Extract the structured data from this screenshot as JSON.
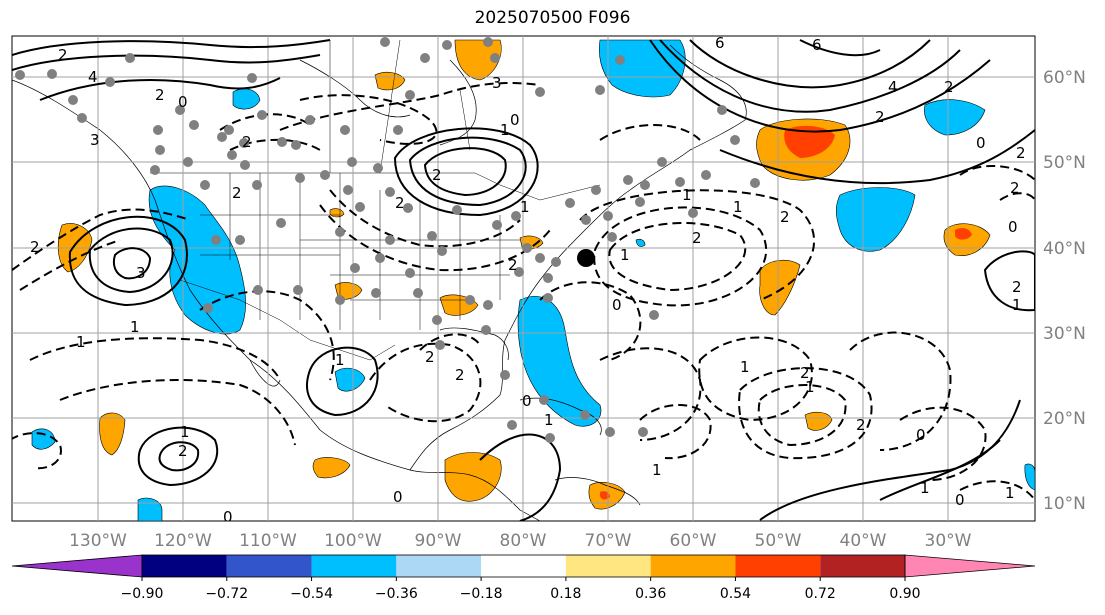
{
  "title": "2025070500 F096",
  "map": {
    "lat_labels": [
      "60°N",
      "50°N",
      "40°N",
      "30°N",
      "20°N",
      "10°N"
    ],
    "lon_labels": [
      "130°W",
      "120°W",
      "110°W",
      "100°W",
      "90°W",
      "80°W",
      "70°W",
      "60°W",
      "50°W",
      "40°W",
      "30°W"
    ],
    "contour_labels": [
      "2",
      "4",
      "0",
      "2",
      "3",
      "2",
      "3",
      "6",
      "6",
      "2",
      "4",
      "2",
      "2",
      "0",
      "1",
      "2",
      "2",
      "0",
      "2",
      "2",
      "1",
      "1",
      "2",
      "0",
      "2",
      "1",
      "3",
      "1",
      "2",
      "1",
      "0",
      "2",
      "1",
      "2",
      "2",
      "0",
      "1",
      "1",
      "0",
      "1",
      "2",
      "0",
      "1",
      "2",
      "1",
      "2",
      "1",
      "1",
      "2",
      "1",
      "0",
      "1",
      "0"
    ]
  },
  "colorbar": {
    "ticks": [
      "−0.90",
      "−0.72",
      "−0.54",
      "−0.36",
      "−0.18",
      "0.18",
      "0.36",
      "0.54",
      "0.72",
      "0.90"
    ],
    "colors": [
      "#9933cc",
      "#000080",
      "#3355cc",
      "#00bfff",
      "#add8f5",
      "#ffffff",
      "#ffe680",
      "#ffa500",
      "#ff4000",
      "#b22222",
      "#ff85b3"
    ]
  }
}
